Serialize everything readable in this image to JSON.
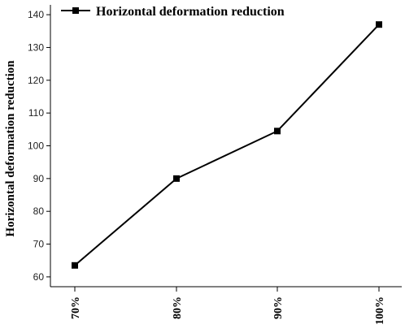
{
  "chart_data": {
    "type": "line",
    "categories": [
      "70%",
      "80%",
      "90%",
      "100%"
    ],
    "series": [
      {
        "name": "Horizontal deformation reduction",
        "values": [
          63.5,
          90,
          104.5,
          137
        ]
      }
    ],
    "ylabel": "Horizontal deformation reduction",
    "ylim": [
      57,
      143
    ],
    "yticks": [
      60,
      70,
      80,
      90,
      100,
      110,
      120,
      130,
      140
    ],
    "grid": false,
    "legend_position": "top-left",
    "line_color": "#000000"
  }
}
